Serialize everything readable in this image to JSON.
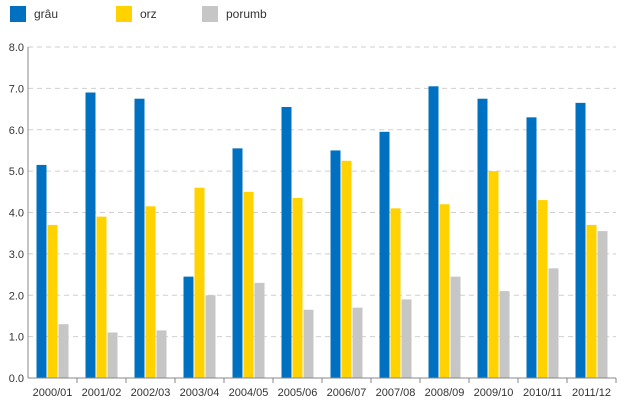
{
  "chart_data": {
    "type": "bar",
    "categories": [
      "2000/01",
      "2001/02",
      "2002/03",
      "2003/04",
      "2004/05",
      "2005/06",
      "2006/07",
      "2007/08",
      "2008/09",
      "2009/10",
      "2010/11",
      "2011/12"
    ],
    "series": [
      {
        "name": "grâu",
        "color": "#0070c0",
        "values": [
          5.15,
          6.9,
          6.75,
          2.45,
          5.55,
          6.55,
          5.5,
          5.95,
          7.05,
          6.75,
          6.3,
          6.65
        ]
      },
      {
        "name": "orz",
        "color": "#ffd200",
        "values": [
          3.7,
          3.9,
          4.15,
          4.6,
          4.5,
          4.35,
          5.25,
          4.1,
          4.2,
          5.0,
          4.3,
          3.7
        ]
      },
      {
        "name": "porumb",
        "color": "#c6c6c6",
        "values": [
          1.3,
          1.1,
          1.15,
          2.0,
          2.3,
          1.65,
          1.7,
          1.9,
          2.45,
          2.1,
          2.65,
          3.55
        ]
      }
    ],
    "yticks": [
      "0.0",
      "1.0",
      "2.0",
      "3.0",
      "4.0",
      "5.0",
      "6.0",
      "7.0",
      "8.0"
    ],
    "ylim": [
      0,
      8
    ],
    "grid": true,
    "legend_position": "top-left"
  }
}
